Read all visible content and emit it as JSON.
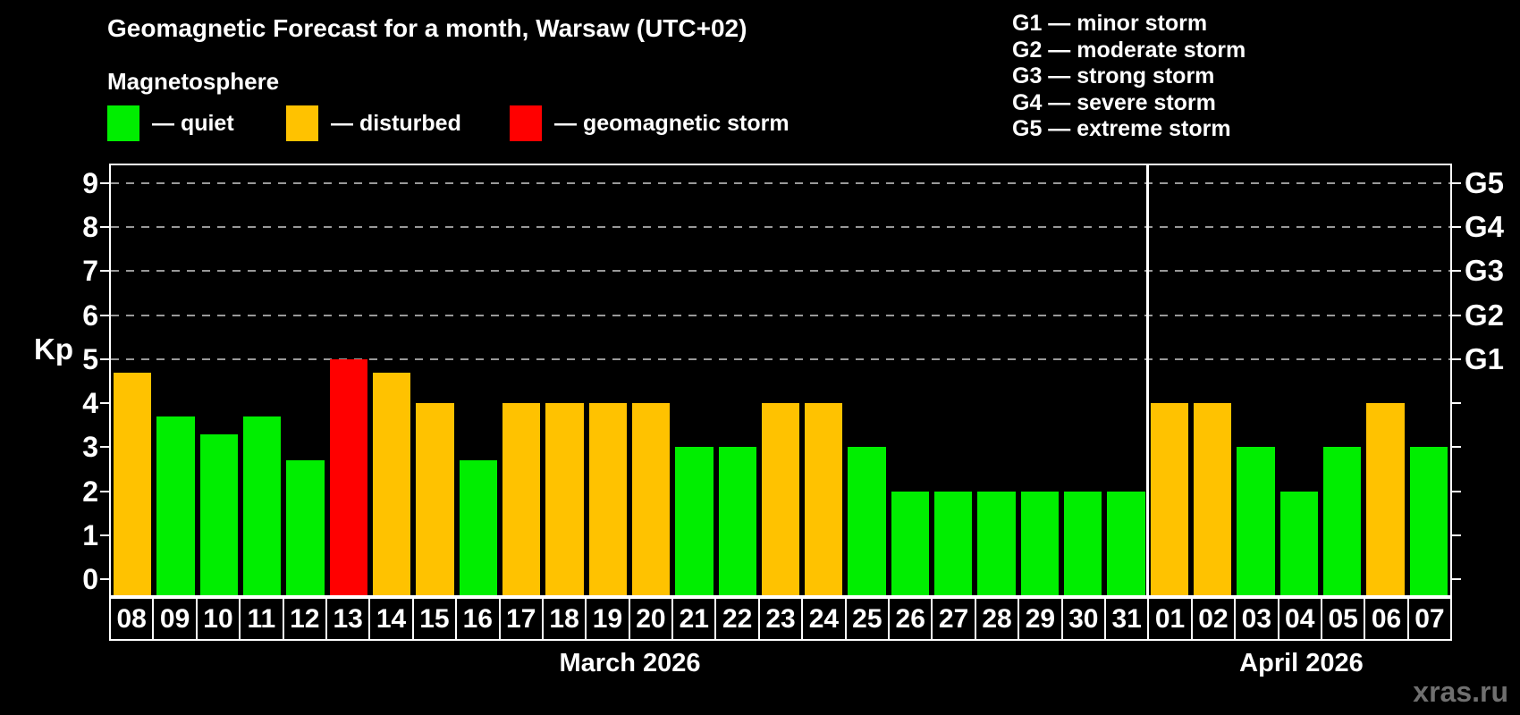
{
  "title": "Geomagnetic Forecast for a month, Warsaw (UTC+02)",
  "subtitle": "Magnetosphere",
  "legend": {
    "items": [
      {
        "key": "quiet",
        "label": "— quiet"
      },
      {
        "key": "disturbed",
        "label": "— disturbed"
      },
      {
        "key": "storm",
        "label": "— geomagnetic storm"
      }
    ]
  },
  "storm_scale_legend": [
    "G1 — minor storm",
    "G2 — moderate storm",
    "G3 — strong storm",
    "G4 — severe storm",
    "G5 — extreme storm"
  ],
  "watermark": "xras.ru",
  "colors": {
    "quiet": "#00ee00",
    "disturbed": "#ffc200",
    "storm": "#ff0000",
    "grid": "#999999",
    "axis": "#ffffff",
    "background": "#000000",
    "watermark": "#6f6f6f"
  },
  "chart_data": {
    "type": "bar",
    "title": "Geomagnetic Forecast for a month, Warsaw (UTC+02)",
    "ylabel": "Kp",
    "axis_min": -0.36,
    "axis_max": 9.4,
    "yticks": [
      0,
      1,
      2,
      3,
      4,
      5,
      6,
      7,
      8,
      9
    ],
    "grid_levels": [
      5,
      6,
      7,
      8,
      9
    ],
    "right_axis_labels": [
      {
        "level": 5,
        "label": "G1"
      },
      {
        "level": 6,
        "label": "G2"
      },
      {
        "level": 7,
        "label": "G3"
      },
      {
        "level": 8,
        "label": "G4"
      },
      {
        "level": 9,
        "label": "G5"
      }
    ],
    "months": [
      {
        "label": "March 2026",
        "bars": [
          {
            "day": "08",
            "kp": 4.7,
            "state": "disturbed"
          },
          {
            "day": "09",
            "kp": 3.7,
            "state": "quiet"
          },
          {
            "day": "10",
            "kp": 3.3,
            "state": "quiet"
          },
          {
            "day": "11",
            "kp": 3.7,
            "state": "quiet"
          },
          {
            "day": "12",
            "kp": 2.7,
            "state": "quiet"
          },
          {
            "day": "13",
            "kp": 5.0,
            "state": "storm"
          },
          {
            "day": "14",
            "kp": 4.7,
            "state": "disturbed"
          },
          {
            "day": "15",
            "kp": 4.0,
            "state": "disturbed"
          },
          {
            "day": "16",
            "kp": 2.7,
            "state": "quiet"
          },
          {
            "day": "17",
            "kp": 4.0,
            "state": "disturbed"
          },
          {
            "day": "18",
            "kp": 4.0,
            "state": "disturbed"
          },
          {
            "day": "19",
            "kp": 4.0,
            "state": "disturbed"
          },
          {
            "day": "20",
            "kp": 4.0,
            "state": "disturbed"
          },
          {
            "day": "21",
            "kp": 3.0,
            "state": "quiet"
          },
          {
            "day": "22",
            "kp": 3.0,
            "state": "quiet"
          },
          {
            "day": "23",
            "kp": 4.0,
            "state": "disturbed"
          },
          {
            "day": "24",
            "kp": 4.0,
            "state": "disturbed"
          },
          {
            "day": "25",
            "kp": 3.0,
            "state": "quiet"
          },
          {
            "day": "26",
            "kp": 2.0,
            "state": "quiet"
          },
          {
            "day": "27",
            "kp": 2.0,
            "state": "quiet"
          },
          {
            "day": "28",
            "kp": 2.0,
            "state": "quiet"
          },
          {
            "day": "29",
            "kp": 2.0,
            "state": "quiet"
          },
          {
            "day": "30",
            "kp": 2.0,
            "state": "quiet"
          },
          {
            "day": "31",
            "kp": 2.0,
            "state": "quiet"
          }
        ]
      },
      {
        "label": "April 2026",
        "bars": [
          {
            "day": "01",
            "kp": 4.0,
            "state": "disturbed"
          },
          {
            "day": "02",
            "kp": 4.0,
            "state": "disturbed"
          },
          {
            "day": "03",
            "kp": 3.0,
            "state": "quiet"
          },
          {
            "day": "04",
            "kp": 2.0,
            "state": "quiet"
          },
          {
            "day": "05",
            "kp": 3.0,
            "state": "quiet"
          },
          {
            "day": "06",
            "kp": 4.0,
            "state": "disturbed"
          },
          {
            "day": "07",
            "kp": 3.0,
            "state": "quiet"
          }
        ]
      }
    ]
  }
}
